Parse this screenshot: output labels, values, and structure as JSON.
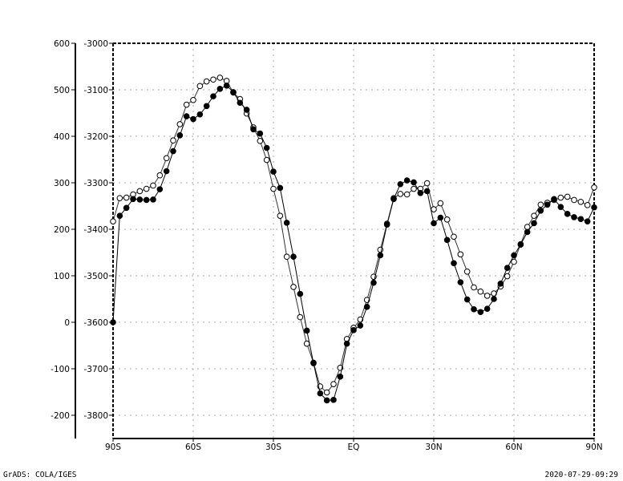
{
  "chart_data": {
    "type": "line",
    "title": "",
    "xlabel": "",
    "ylabel": "",
    "x_ticks": [
      "90S",
      "60S",
      "30S",
      "EQ",
      "30N",
      "60N",
      "90N"
    ],
    "x_tick_values": [
      -90,
      -60,
      -30,
      0,
      30,
      60,
      90
    ],
    "xlim": [
      -90,
      90
    ],
    "y_left": {
      "ticks": [
        "600",
        "500",
        "400",
        "300",
        "200",
        "100",
        "0",
        "-100",
        "-200"
      ],
      "tick_values": [
        600,
        500,
        400,
        300,
        200,
        100,
        0,
        -100,
        -200
      ],
      "ylim": [
        -250,
        600
      ]
    },
    "y_right": {
      "ticks": [
        "-3000",
        "-3100",
        "-3200",
        "-3300",
        "-3400",
        "-3500",
        "-3600",
        "-3700",
        "-3800"
      ],
      "tick_values": [
        -3000,
        -3100,
        -3200,
        -3300,
        -3400,
        -3500,
        -3600,
        -3700,
        -3800
      ],
      "ylim": [
        -3850,
        -3000
      ]
    },
    "grid": true,
    "x": [
      -90,
      -87.5,
      -85,
      -82.5,
      -80,
      -77.5,
      -75,
      -72.5,
      -70,
      -67.5,
      -65,
      -62.5,
      -60,
      -57.5,
      -55,
      -52.5,
      -50,
      -47.5,
      -45,
      -42.5,
      -40,
      -37.5,
      -35,
      -32.5,
      -30,
      -27.5,
      -25,
      -22.5,
      -20,
      -17.5,
      -15,
      -12.5,
      -10,
      -7.5,
      -5,
      -2.5,
      0,
      2.5,
      5,
      7.5,
      10,
      12.5,
      15,
      17.5,
      20,
      22.5,
      25,
      27.5,
      30,
      32.5,
      35,
      37.5,
      40,
      42.5,
      45,
      47.5,
      50,
      52.5,
      55,
      57.5,
      60,
      62.5,
      65,
      67.5,
      70,
      72.5,
      75,
      77.5,
      80,
      82.5,
      85,
      87.5,
      90
    ],
    "series": [
      {
        "marker": "filled-circle",
        "axis": "left",
        "color": "#000000",
        "values": [
          0,
          229,
          246,
          265,
          264,
          263,
          264,
          286,
          325,
          368,
          402,
          443,
          437,
          447,
          465,
          486,
          502,
          509,
          495,
          472,
          457,
          415,
          406,
          375,
          324,
          289,
          214,
          141,
          61,
          -18,
          -88,
          -153,
          -168,
          -167,
          -117,
          -46,
          -17,
          -7,
          33,
          85,
          144,
          210,
          265,
          297,
          305,
          301,
          278,
          282,
          213,
          225,
          177,
          127,
          86,
          49,
          28,
          22,
          29,
          50,
          83,
          117,
          144,
          167,
          194,
          213,
          240,
          253,
          265,
          248,
          233,
          226,
          222,
          217,
          247
        ]
      },
      {
        "marker": "open-circle",
        "axis": "right",
        "color": "#000000",
        "values": [
          -3383,
          -3333,
          -3332,
          -3325,
          -3318,
          -3313,
          -3306,
          -3284,
          -3247,
          -3209,
          -3174,
          -3132,
          -3122,
          -3092,
          -3082,
          -3078,
          -3074,
          -3081,
          -3106,
          -3120,
          -3151,
          -3181,
          -3210,
          -3251,
          -3313,
          -3371,
          -3459,
          -3524,
          -3589,
          -3646,
          -3687,
          -3738,
          -3751,
          -3733,
          -3698,
          -3636,
          -3612,
          -3594,
          -3552,
          -3502,
          -3444,
          -3388,
          -3333,
          -3324,
          -3325,
          -3313,
          -3313,
          -3301,
          -3357,
          -3344,
          -3379,
          -3416,
          -3454,
          -3491,
          -3525,
          -3534,
          -3543,
          -3538,
          -3523,
          -3501,
          -3470,
          -3432,
          -3395,
          -3371,
          -3347,
          -3343,
          -3337,
          -3332,
          -3330,
          -3337,
          -3341,
          -3348,
          -3310
        ]
      }
    ]
  },
  "footer": {
    "left": "GrADS: COLA/IGES",
    "right": "2020-07-29-09:29"
  }
}
